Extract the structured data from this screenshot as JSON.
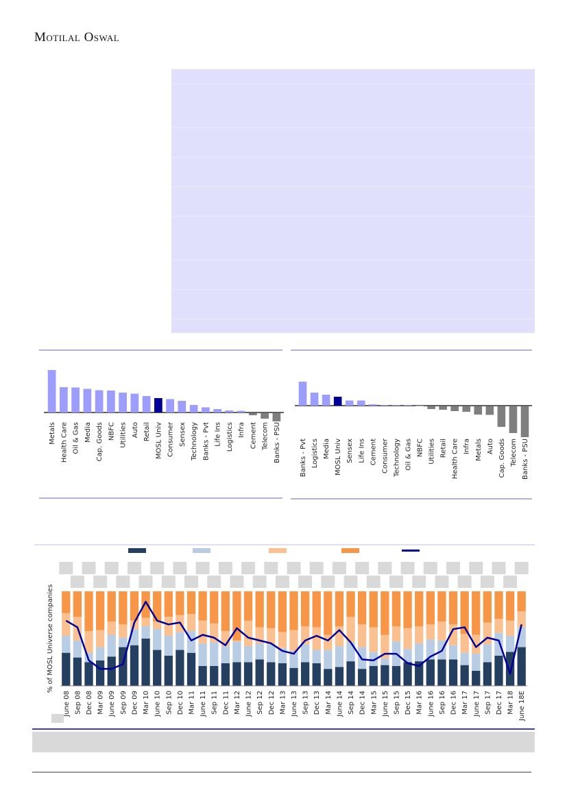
{
  "header": {
    "logo_text": "Motilal Oswal"
  },
  "colors": {
    "table_bg": "#e0e0fc",
    "bar_positive": "#9d9dfb",
    "bar_highlight": "#000099",
    "bar_negative": "#7f7f7f",
    "rule": "#6b66b0",
    "series": [
      "#243f60",
      "#b8cce4",
      "#fac090",
      "#f79646"
    ],
    "line": "#000099",
    "redacted": "#d9d9d9"
  },
  "chart_data": [
    {
      "type": "bar",
      "highlight": "MOSL Univ",
      "categories": [
        "Metals",
        "Health Care",
        "Oil & Gas",
        "Media",
        "Cap. Goods",
        "NBFC",
        "Utilities",
        "Auto",
        "Retail",
        "MOSL Univ",
        "Consumer",
        "Sensex",
        "Technology",
        "Banks - Pvt",
        "Life Ins",
        "Logistics",
        "Infra",
        "Cement",
        "Telecom",
        "Banks - PSU"
      ],
      "values": [
        62,
        37,
        36.5,
        34.5,
        32.5,
        32,
        29,
        27.5,
        24,
        21,
        19.5,
        17,
        11,
        7.5,
        5,
        3,
        2.5,
        -3,
        -8,
        -12
      ]
    },
    {
      "type": "bar",
      "highlight": "MOSL Univ",
      "categories": [
        "Banks - Pvt",
        "Logistics",
        "Media",
        "MOSL Univ",
        "Sensex",
        "Life Ins",
        "Cement",
        "Consumer",
        "Technology",
        "Oil & Gas",
        "NBFC",
        "Utilities",
        "Retail",
        "Health Care",
        "Infra",
        "Metals",
        "Auto",
        "Cap. Goods",
        "Telecom",
        "Banks - PSU"
      ],
      "values": [
        35,
        19,
        16,
        13,
        7.5,
        7.5,
        2,
        1,
        1,
        1,
        0,
        -4,
        -5,
        -7,
        -8,
        -12,
        -12.5,
        -30,
        -39,
        -45
      ]
    },
    {
      "type": "bar",
      "stacked": true,
      "ylabel": "% of MOSL Universe companies",
      "ylim": [
        0,
        100
      ],
      "categories": [
        "June 08",
        "Sep 08",
        "Dec 08",
        "Mar 09",
        "June 09",
        "Sep 09",
        "Dec 09",
        "Mar 10",
        "June 10",
        "Sep 10",
        "Dec 10",
        "Mar 11",
        "June 11",
        "Sep 11",
        "Dec 11",
        "Mar 12",
        "June 12",
        "Sep 12",
        "Dec 12",
        "Mar 13",
        "June 13",
        "Sep 13",
        "Dec 13",
        "Mar 14",
        "June 14",
        "Sep 14",
        "Dec 14",
        "Mar 15",
        "June 15",
        "Sep 15",
        "Dec 15",
        "Mar 16",
        "June 16",
        "Sep 16",
        "Dec 16",
        "Mar 17",
        "June 17",
        "Sep 17",
        "Dec 17",
        "Mar 18",
        "June 18E"
      ],
      "series": [
        {
          "values": [
            35,
            30,
            25,
            27,
            31,
            41,
            43,
            50,
            38,
            32,
            38,
            35,
            21,
            21,
            24,
            25,
            25,
            28,
            25,
            24,
            19,
            25,
            24,
            18,
            20,
            26,
            18,
            21,
            22,
            21,
            25,
            26,
            28,
            28,
            28,
            22,
            16,
            25,
            32,
            36,
            41
          ]
        },
        {
          "values": [
            18,
            18,
            10,
            14,
            23,
            10,
            17,
            13,
            22,
            21,
            19,
            23,
            24,
            25,
            18,
            22,
            17,
            17,
            19,
            16,
            18,
            19,
            14,
            20,
            22,
            20,
            23,
            15,
            7,
            26,
            14,
            19,
            21,
            20,
            15,
            13,
            18,
            19,
            24,
            17,
            21
          ]
        },
        {
          "values": [
            24,
            25,
            23,
            18,
            14,
            14,
            9,
            9,
            8,
            20,
            18,
            18,
            24,
            20,
            16,
            1,
            27,
            17,
            17,
            17,
            22,
            19,
            24,
            16,
            21,
            27,
            24,
            26,
            25,
            16,
            22,
            18,
            16,
            20,
            22,
            20,
            20,
            23,
            15,
            16,
            17
          ]
        },
        {
          "values": [
            23,
            27,
            42,
            41,
            32,
            35,
            31,
            28,
            32,
            27,
            25,
            24,
            31,
            34,
            42,
            52,
            31,
            38,
            39,
            43,
            41,
            37,
            38,
            46,
            37,
            27,
            35,
            38,
            46,
            37,
            39,
            37,
            35,
            32,
            35,
            45,
            46,
            33,
            29,
            31,
            21
          ]
        }
      ],
      "line": {
        "type": "line",
        "values": [
          69,
          62,
          27,
          18,
          18,
          23,
          67,
          89,
          69,
          65,
          67,
          48,
          54,
          51,
          43,
          61,
          51,
          48,
          45,
          37,
          34,
          48,
          53,
          48,
          59,
          46,
          28,
          27,
          34,
          34,
          24,
          21,
          31,
          37,
          60,
          62,
          41,
          51,
          48,
          13,
          65
        ]
      }
    }
  ]
}
